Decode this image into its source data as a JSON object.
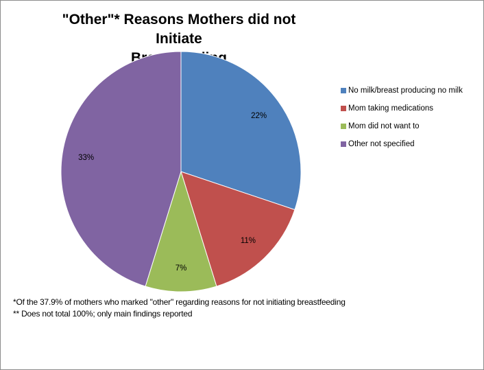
{
  "chart_data": {
    "type": "pie",
    "title_line1": "\"Other\"* Reasons Mothers did not Initiate",
    "title_line2": "Breastfeeding",
    "slices": [
      {
        "label": "No milk/breast producing no milk",
        "value": 22,
        "value_label": "22%",
        "color": "#4f81bd"
      },
      {
        "label": "Mom taking medications",
        "value": 11,
        "value_label": "11%",
        "color": "#c0504d"
      },
      {
        "label": "Mom did not want to",
        "value": 7,
        "value_label": "7%",
        "color": "#9bbb59"
      },
      {
        "label": "Other not specified",
        "value": 33,
        "value_label": "33%",
        "color": "#8064a2"
      }
    ],
    "legend_position": "right"
  },
  "footnotes": {
    "line1": "*Of the 37.9% of mothers who marked \"other\" regarding reasons for not initiating breastfeeding",
    "line2": "** Does not total 100%; only main findings reported"
  }
}
